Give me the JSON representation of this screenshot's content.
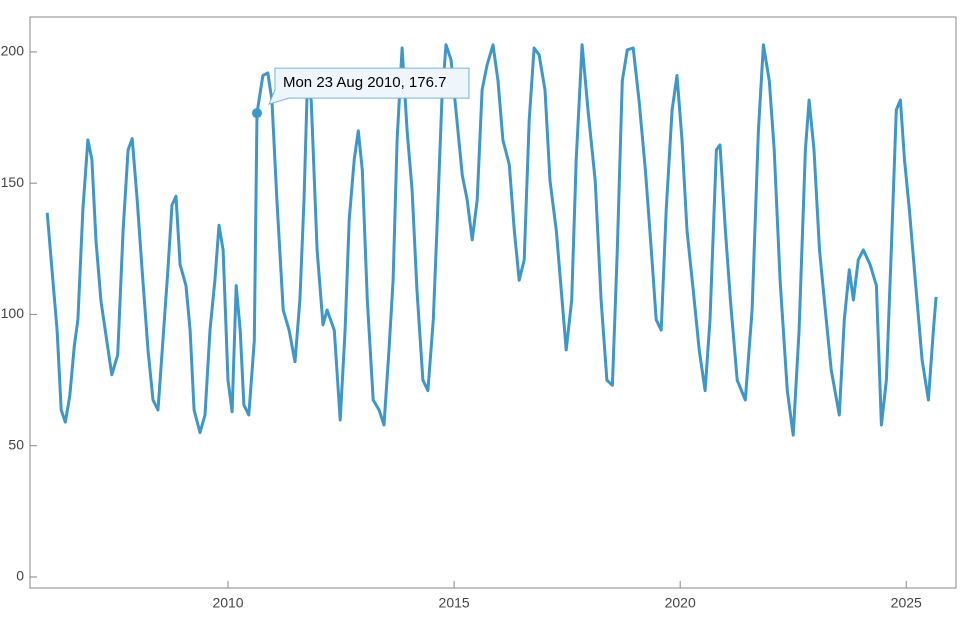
{
  "chart_data": {
    "type": "line",
    "color": "#3e97c9",
    "x": [
      2006.0,
      2006.22,
      2006.31,
      2006.4,
      2006.5,
      2006.6,
      2006.68,
      2006.79,
      2006.9,
      2006.99,
      2007.08,
      2007.19,
      2007.3,
      2007.43,
      2007.56,
      2007.68,
      2007.79,
      2007.88,
      2007.99,
      2008.1,
      2008.23,
      2008.34,
      2008.45,
      2008.56,
      2008.67,
      2008.76,
      2008.85,
      2008.94,
      2009.07,
      2009.16,
      2009.25,
      2009.38,
      2009.49,
      2009.6,
      2009.71,
      2009.8,
      2009.89,
      2010.0,
      2010.09,
      2010.18,
      2010.27,
      2010.35,
      2010.46,
      2010.58,
      2010.64,
      2010.77,
      2010.88,
      2010.97,
      2011.08,
      2011.22,
      2011.35,
      2011.48,
      2011.59,
      2011.68,
      2011.75,
      2011.84,
      2011.97,
      2012.1,
      2012.19,
      2012.35,
      2012.48,
      2012.59,
      2012.68,
      2012.79,
      2012.88,
      2012.97,
      2013.08,
      2013.21,
      2013.34,
      2013.45,
      2013.56,
      2013.65,
      2013.74,
      2013.85,
      2013.96,
      2014.07,
      2014.18,
      2014.31,
      2014.42,
      2014.54,
      2014.62,
      2014.73,
      2014.82,
      2014.93,
      2015.04,
      2015.18,
      2015.29,
      2015.4,
      2015.51,
      2015.62,
      2015.73,
      2015.86,
      2015.97,
      2016.08,
      2016.22,
      2016.33,
      2016.44,
      2016.55,
      2016.66,
      2016.77,
      2016.88,
      2017.01,
      2017.12,
      2017.26,
      2017.37,
      2017.48,
      2017.6,
      2017.7,
      2017.83,
      2017.96,
      2018.12,
      2018.25,
      2018.38,
      2018.5,
      2018.61,
      2018.72,
      2018.83,
      2018.96,
      2019.09,
      2019.23,
      2019.36,
      2019.47,
      2019.58,
      2019.69,
      2019.82,
      2019.93,
      2020.04,
      2020.15,
      2020.29,
      2020.42,
      2020.55,
      2020.66,
      2020.8,
      2020.88,
      2021.0,
      2021.11,
      2021.26,
      2021.44,
      2021.59,
      2021.73,
      2021.84,
      2021.97,
      2022.08,
      2022.21,
      2022.37,
      2022.5,
      2022.63,
      2022.77,
      2022.85,
      2022.96,
      2023.08,
      2023.21,
      2023.34,
      2023.52,
      2023.63,
      2023.74,
      2023.83,
      2023.94,
      2024.05,
      2024.2,
      2024.34,
      2024.45,
      2024.56,
      2024.67,
      2024.78,
      2024.87,
      2024.96,
      2025.07,
      2025.2,
      2025.35,
      2025.49,
      2025.6,
      2025.66
    ],
    "values": [
      138.7,
      94,
      63.6,
      59,
      69,
      88,
      98,
      140,
      166.5,
      159,
      128,
      105,
      92,
      77,
      84.6,
      132,
      162.7,
      167,
      143.6,
      117,
      86.5,
      67.4,
      63.6,
      90,
      117,
      141.7,
      145,
      119,
      111,
      94,
      63.6,
      55,
      61.7,
      94,
      113,
      134,
      124.6,
      75,
      62.9,
      111,
      94,
      65.5,
      61.7,
      90,
      176.7,
      191,
      192,
      181.7,
      143.6,
      101.7,
      94,
      82,
      105.5,
      143.6,
      185.5,
      181.7,
      124.6,
      96,
      101.7,
      94,
      59.8,
      94,
      136,
      158.9,
      170,
      155,
      105.5,
      67.4,
      63.6,
      57.9,
      86.5,
      113,
      166.5,
      201.5,
      170,
      147.4,
      109,
      75,
      71,
      98,
      132,
      181.7,
      202.7,
      197,
      177.9,
      153,
      143.6,
      128.4,
      143.6,
      185.5,
      195,
      202.7,
      189,
      166.5,
      157,
      132,
      113,
      120.8,
      174,
      201.5,
      198.9,
      185.5,
      151,
      132,
      109,
      86.5,
      105.5,
      158.9,
      202.7,
      177.9,
      151,
      105.5,
      75,
      73,
      124.6,
      189,
      200.8,
      201.5,
      181.7,
      155,
      124.6,
      98,
      94,
      139.8,
      177.9,
      191,
      166.5,
      132,
      109,
      86.5,
      71,
      98,
      162.7,
      164.6,
      132,
      105.5,
      75,
      67.4,
      101.7,
      170,
      202.7,
      189,
      162.7,
      113,
      71,
      54,
      94,
      162.7,
      181.7,
      162.7,
      124.6,
      101.7,
      78.9,
      61.7,
      98,
      117,
      105.5,
      120.8,
      124.6,
      119,
      111,
      57.9,
      75,
      124.6,
      177.9,
      181.7,
      158.9,
      139.8,
      113,
      82.7,
      67.4,
      94,
      106.7
    ],
    "xlim": [
      2005.62,
      2026.1
    ],
    "xticks": [
      2010,
      2015,
      2020,
      2025
    ],
    "ylim": [
      -4.2,
      213.3
    ],
    "yticks": [
      0,
      50,
      100,
      150,
      200
    ],
    "annotation": {
      "text": "Mon 23 Aug 2010, 176.7",
      "x": 2010.64,
      "y": 176.7
    }
  }
}
